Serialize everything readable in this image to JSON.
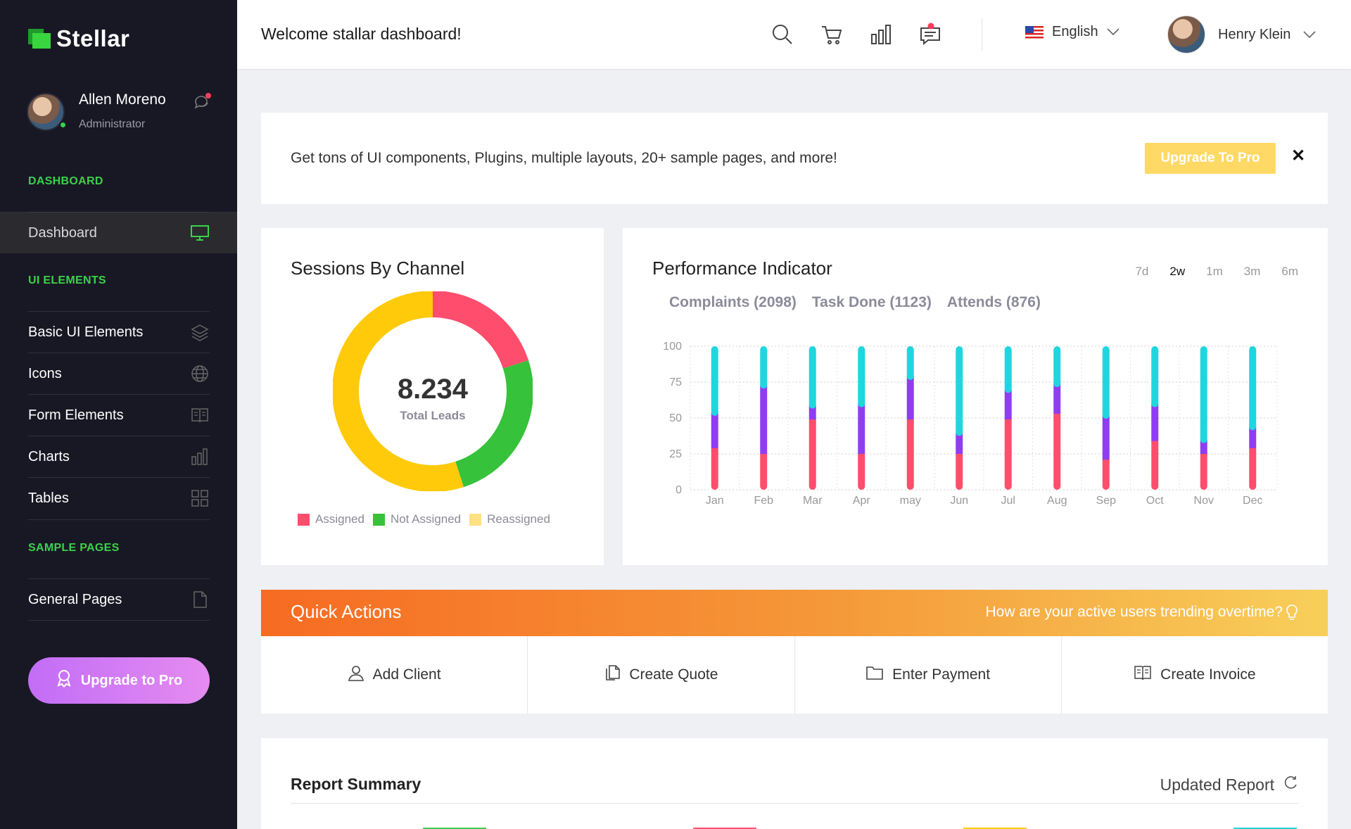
{
  "app": {
    "brand": "Stellar"
  },
  "sidebar": {
    "user": {
      "name": "Allen Moreno",
      "role": "Administrator"
    },
    "sections": {
      "dashboard": "DASHBOARD",
      "ui": "UI ELEMENTS",
      "samples": "SAMPLE PAGES"
    },
    "items": [
      {
        "label": "Dashboard",
        "icon": "monitor-icon"
      },
      {
        "label": "Basic UI Elements",
        "icon": "layers-icon"
      },
      {
        "label": "Icons",
        "icon": "globe-icon"
      },
      {
        "label": "Form Elements",
        "icon": "book-icon"
      },
      {
        "label": "Charts",
        "icon": "bar-chart-icon"
      },
      {
        "label": "Tables",
        "icon": "grid-icon"
      },
      {
        "label": "General Pages",
        "icon": "file-icon"
      }
    ],
    "upgrade_label": "Upgrade to Pro"
  },
  "topbar": {
    "title": "Welcome stallar dashboard!",
    "language": "English",
    "user_name": "Henry Klein"
  },
  "banner": {
    "text": "Get tons of UI components, Plugins, multiple layouts, 20+ sample pages, and more!",
    "button": "Upgrade To Pro",
    "close": "✕"
  },
  "sessions": {
    "title": "Sessions By Channel",
    "total": "8.234",
    "total_label": "Total Leads",
    "legend": [
      "Assigned",
      "Not Assigned",
      "Reassigned"
    ]
  },
  "performance": {
    "title": "Performance Indicator",
    "ranges": [
      "7d",
      "2w",
      "1m",
      "3m",
      "6m"
    ],
    "active_range": "2w",
    "legend": [
      "Complaints (2098)",
      "Task Done (1123)",
      "Attends (876)"
    ]
  },
  "quick_actions": {
    "title": "Quick Actions",
    "subtitle": "How are your active users trending overtime?",
    "actions": [
      "Add Client",
      "Create Quote",
      "Enter Payment",
      "Create Invoice"
    ]
  },
  "report": {
    "title": "Report Summary",
    "update_label": "Updated Report"
  },
  "colors": {
    "accent_green": "#3bd14a",
    "red": "#ff4d6d",
    "yellow": "#ffca0a",
    "purple": "#8f3df2",
    "cyan": "#1fd6df",
    "orange": "#f66b22"
  },
  "chart_data": [
    {
      "type": "pie",
      "title": "Sessions By Channel",
      "categories": [
        "Assigned",
        "Not Assigned",
        "Reassigned"
      ],
      "values": [
        20,
        25,
        55
      ],
      "colors": [
        "#ff4d6d",
        "#36c23a",
        "#ffca0a"
      ]
    },
    {
      "type": "bar",
      "title": "Performance Indicator",
      "stacked": true,
      "categories": [
        "Jan",
        "Feb",
        "Mar",
        "Apr",
        "may",
        "Jun",
        "Jul",
        "Aug",
        "Sep",
        "Oct",
        "Nov",
        "Dec"
      ],
      "ylim": [
        0,
        100
      ],
      "yticks": [
        0,
        25,
        50,
        75,
        100
      ],
      "series": [
        {
          "name": "Complaints",
          "color": "#ff4d6d",
          "values": [
            29,
            25,
            49,
            25,
            49,
            25,
            49,
            53,
            21,
            34,
            25,
            29
          ]
        },
        {
          "name": "Task Done",
          "color": "#8f3df2",
          "values": [
            25,
            48,
            10,
            35,
            30,
            15,
            21,
            21,
            31,
            26,
            10,
            15
          ]
        },
        {
          "name": "Attends",
          "color": "#1fd6df",
          "values": [
            46,
            27,
            41,
            40,
            21,
            60,
            30,
            26,
            48,
            40,
            65,
            56
          ]
        }
      ]
    }
  ]
}
